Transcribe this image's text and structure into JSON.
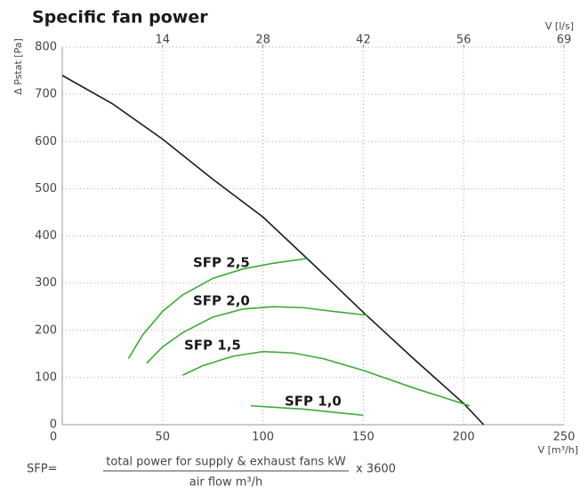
{
  "chart_data": {
    "type": "line",
    "title": "Specific fan power",
    "xlabel": "V [m³/h]",
    "x2label": "V [l/s]",
    "ylabel": "Δ Pstat [Pa]",
    "xlim": [
      0,
      250
    ],
    "xticks": [
      0,
      50,
      100,
      150,
      200,
      250
    ],
    "x2lim": [
      0,
      69.44
    ],
    "x2ticks": [
      {
        "value": 13.89,
        "label": "14"
      },
      {
        "value": 27.78,
        "label": "28"
      },
      {
        "value": 41.67,
        "label": "42"
      },
      {
        "value": 55.56,
        "label": "56"
      },
      {
        "value": 69.44,
        "label": "69"
      }
    ],
    "ylim": [
      0,
      800
    ],
    "yticks": [
      0,
      100,
      200,
      300,
      400,
      500,
      600,
      700,
      800
    ],
    "grid": true,
    "series": [
      {
        "name": null,
        "color": "#1a1a1a",
        "x": [
          0,
          25,
          50,
          75,
          100,
          125,
          150,
          175,
          200,
          210
        ],
        "values": [
          740,
          680,
          605,
          520,
          440,
          340,
          238,
          140,
          45,
          0
        ]
      },
      {
        "name": "SFP 2,5",
        "color": "#3aaa35",
        "x": [
          33,
          40,
          50,
          60,
          75,
          90,
          105,
          122
        ],
        "values": [
          140,
          190,
          240,
          275,
          310,
          330,
          342,
          352
        ]
      },
      {
        "name": "SFP 2,0",
        "color": "#3aaa35",
        "x": [
          42,
          50,
          60,
          75,
          90,
          105,
          120,
          135,
          152
        ],
        "values": [
          130,
          165,
          195,
          228,
          245,
          250,
          248,
          240,
          232
        ]
      },
      {
        "name": "SFP 1,5",
        "color": "#3aaa35",
        "x": [
          60,
          70,
          85,
          100,
          115,
          130,
          150,
          175,
          203
        ],
        "values": [
          105,
          125,
          145,
          155,
          152,
          140,
          115,
          78,
          40
        ]
      },
      {
        "name": "SFP 1,0",
        "color": "#3aaa35",
        "x": [
          94,
          120,
          150
        ],
        "values": [
          40,
          33,
          20
        ]
      }
    ],
    "formula": {
      "lhs": "SFP=",
      "numerator": "total power for supply & exhaust fans kW",
      "denominator": "air flow m³/h",
      "factor": "x 3600"
    }
  }
}
